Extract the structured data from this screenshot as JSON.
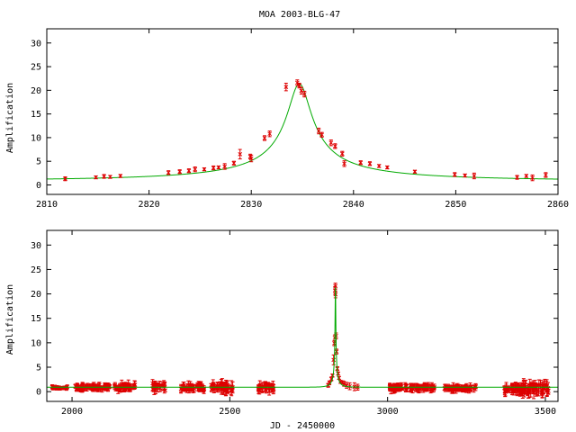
{
  "chart_data": [
    {
      "type": "scatter",
      "title": "MOA 2003-BLG-47",
      "xlabel": "",
      "ylabel": "Amplification",
      "xlim": [
        2810,
        2860
      ],
      "ylim": [
        -2,
        33
      ],
      "xticks": [
        2810,
        2820,
        2830,
        2840,
        2850,
        2860
      ],
      "yticks": [
        0,
        5,
        10,
        15,
        20,
        25,
        30
      ],
      "grid": false,
      "colors": {
        "data": "#dd0000",
        "model": "#00aa00"
      },
      "model_curve": {
        "t0": 2834.7,
        "tE": 25,
        "u0": 0.0466,
        "baseline": 0.9
      },
      "points": [
        [
          2811.8,
          1.3,
          0.4
        ],
        [
          2814.8,
          1.6,
          0.3
        ],
        [
          2815.6,
          1.8,
          0.4
        ],
        [
          2816.2,
          1.7,
          0.3
        ],
        [
          2817.2,
          1.9,
          0.3
        ],
        [
          2821.9,
          2.6,
          0.4
        ],
        [
          2823.0,
          2.8,
          0.4
        ],
        [
          2823.9,
          3.0,
          0.4
        ],
        [
          2824.5,
          3.3,
          0.5
        ],
        [
          2825.4,
          3.3,
          0.3
        ],
        [
          2826.3,
          3.6,
          0.4
        ],
        [
          2826.8,
          3.7,
          0.3
        ],
        [
          2827.4,
          3.9,
          0.6
        ],
        [
          2828.3,
          4.6,
          0.4
        ],
        [
          2828.9,
          6.5,
          1.0
        ],
        [
          2829.9,
          6.0,
          0.5
        ],
        [
          2830.0,
          5.6,
          0.7
        ],
        [
          2831.3,
          9.9,
          0.5
        ],
        [
          2831.8,
          10.8,
          0.6
        ],
        [
          2833.4,
          20.7,
          0.8
        ],
        [
          2834.5,
          21.6,
          0.6
        ],
        [
          2834.7,
          21.0,
          0.5
        ],
        [
          2834.9,
          19.9,
          0.7
        ],
        [
          2835.2,
          19.2,
          0.6
        ],
        [
          2836.6,
          11.4,
          0.6
        ],
        [
          2836.9,
          10.6,
          0.5
        ],
        [
          2837.8,
          8.9,
          0.6
        ],
        [
          2838.2,
          8.2,
          0.5
        ],
        [
          2838.9,
          6.6,
          0.5
        ],
        [
          2839.1,
          4.5,
          0.6
        ],
        [
          2840.7,
          4.7,
          0.4
        ],
        [
          2841.6,
          4.5,
          0.4
        ],
        [
          2842.5,
          4.0,
          0.3
        ],
        [
          2843.3,
          3.7,
          0.3
        ],
        [
          2846.0,
          2.8,
          0.3
        ],
        [
          2849.9,
          2.2,
          0.4
        ],
        [
          2850.9,
          2.0,
          0.3
        ],
        [
          2851.8,
          1.9,
          0.6
        ],
        [
          2856.0,
          1.6,
          0.4
        ],
        [
          2856.9,
          1.9,
          0.3
        ],
        [
          2857.5,
          1.5,
          0.6
        ],
        [
          2858.8,
          2.1,
          0.5
        ]
      ]
    },
    {
      "type": "scatter",
      "title": "",
      "xlabel": "JD - 2450000",
      "ylabel": "Amplification",
      "xlim": [
        1920,
        3540
      ],
      "ylim": [
        -2,
        33
      ],
      "xticks": [
        2000,
        2500,
        3000,
        3500
      ],
      "yticks": [
        0,
        5,
        10,
        15,
        20,
        25,
        30
      ],
      "grid": false,
      "colors": {
        "data": "#dd0000",
        "model": "#00aa00"
      },
      "model_curve": {
        "t0": 2834.7,
        "tE": 25,
        "u0": 0.0466,
        "baseline": 0.9
      },
      "season_segments": [
        [
          1935,
          1975,
          0.8,
          0.4
        ],
        [
          1975,
          1985,
          0.8,
          0.4
        ],
        [
          2010,
          2060,
          0.9,
          0.8
        ],
        [
          2060,
          2120,
          0.9,
          1.0
        ],
        [
          2135,
          2200,
          1.0,
          1.2
        ],
        [
          2255,
          2295,
          1.0,
          1.5
        ],
        [
          2345,
          2420,
          0.9,
          1.2
        ],
        [
          2440,
          2510,
          0.9,
          1.6
        ],
        [
          2590,
          2640,
          0.8,
          1.3
        ],
        [
          3005,
          3150,
          0.8,
          1.0
        ],
        [
          3180,
          3280,
          0.7,
          0.9
        ],
        [
          3370,
          3420,
          0.6,
          1.4
        ],
        [
          3420,
          3510,
          0.7,
          2.0
        ]
      ],
      "event_points": [
        [
          2811.8,
          1.3,
          0.4
        ],
        [
          2815.6,
          1.8,
          0.4
        ],
        [
          2821.9,
          2.6,
          0.4
        ],
        [
          2825.4,
          3.3,
          0.3
        ],
        [
          2828.9,
          6.5,
          1.0
        ],
        [
          2831.3,
          9.9,
          0.5
        ],
        [
          2832.5,
          11.0,
          0.6
        ],
        [
          2833.4,
          20.7,
          0.8
        ],
        [
          2834.5,
          21.6,
          0.6
        ],
        [
          2834.9,
          19.9,
          0.7
        ],
        [
          2836.6,
          11.4,
          0.6
        ],
        [
          2838.2,
          8.2,
          0.5
        ],
        [
          2840.7,
          4.7,
          0.4
        ],
        [
          2843.3,
          3.7,
          0.3
        ],
        [
          2846.0,
          2.8,
          0.3
        ],
        [
          2850.9,
          2.0,
          0.3
        ],
        [
          2856.9,
          1.9,
          0.3
        ],
        [
          2862.0,
          1.6,
          0.5
        ],
        [
          2870.0,
          1.3,
          0.6
        ],
        [
          2880.0,
          1.1,
          0.7
        ],
        [
          2895.0,
          1.0,
          0.8
        ],
        [
          2905.0,
          0.9,
          0.6
        ]
      ]
    }
  ]
}
